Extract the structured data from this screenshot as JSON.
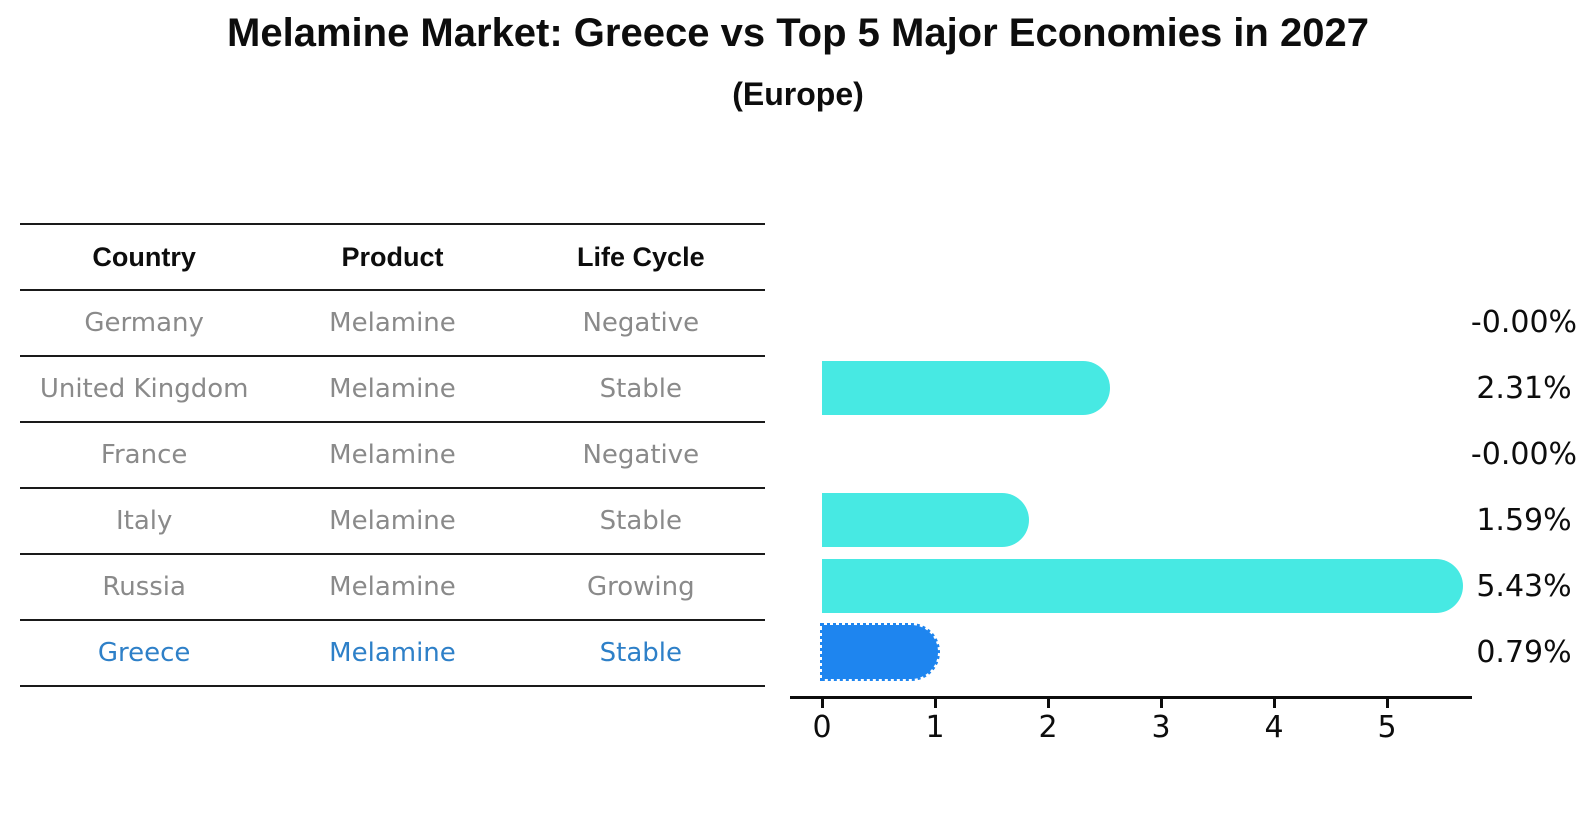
{
  "title": "Melamine Market: Greece vs Top 5 Major Economies in 2027",
  "subtitle": "(Europe)",
  "table": {
    "headers": [
      "Country",
      "Product",
      "Life Cycle"
    ],
    "rows": [
      {
        "country": "Germany",
        "product": "Melamine",
        "life_cycle": "Negative",
        "highlight": false
      },
      {
        "country": "United Kingdom",
        "product": "Melamine",
        "life_cycle": "Stable",
        "highlight": false
      },
      {
        "country": "France",
        "product": "Melamine",
        "life_cycle": "Negative",
        "highlight": false
      },
      {
        "country": "Italy",
        "product": "Melamine",
        "life_cycle": "Stable",
        "highlight": false
      },
      {
        "country": "Russia",
        "product": "Melamine",
        "life_cycle": "Growing",
        "highlight": false
      },
      {
        "country": "Greece",
        "product": "Melamine",
        "life_cycle": "Stable",
        "highlight": true
      }
    ]
  },
  "chart_data": {
    "type": "bar",
    "orientation": "horizontal",
    "title": "Melamine Market: Greece vs Top 5 Major Economies in 2027",
    "subtitle": "(Europe)",
    "categories": [
      "Germany",
      "United Kingdom",
      "France",
      "Italy",
      "Russia",
      "Greece"
    ],
    "values": [
      -0.0,
      2.31,
      -0.0,
      1.59,
      5.43,
      0.79
    ],
    "labels": [
      "-0.00%",
      "2.31%",
      "-0.00%",
      "1.59%",
      "5.43%",
      "0.79%"
    ],
    "x_ticks": [
      0,
      1,
      2,
      3,
      4,
      5
    ],
    "xlim": [
      0,
      5.75
    ],
    "grid": false,
    "bar_color": "#47e9e3",
    "highlight_color": "#1e85ef",
    "highlight_index": 5,
    "highlight_text_color": "#2e80c8",
    "axis_color": "#0d0d0d",
    "value_suffix": "%"
  }
}
